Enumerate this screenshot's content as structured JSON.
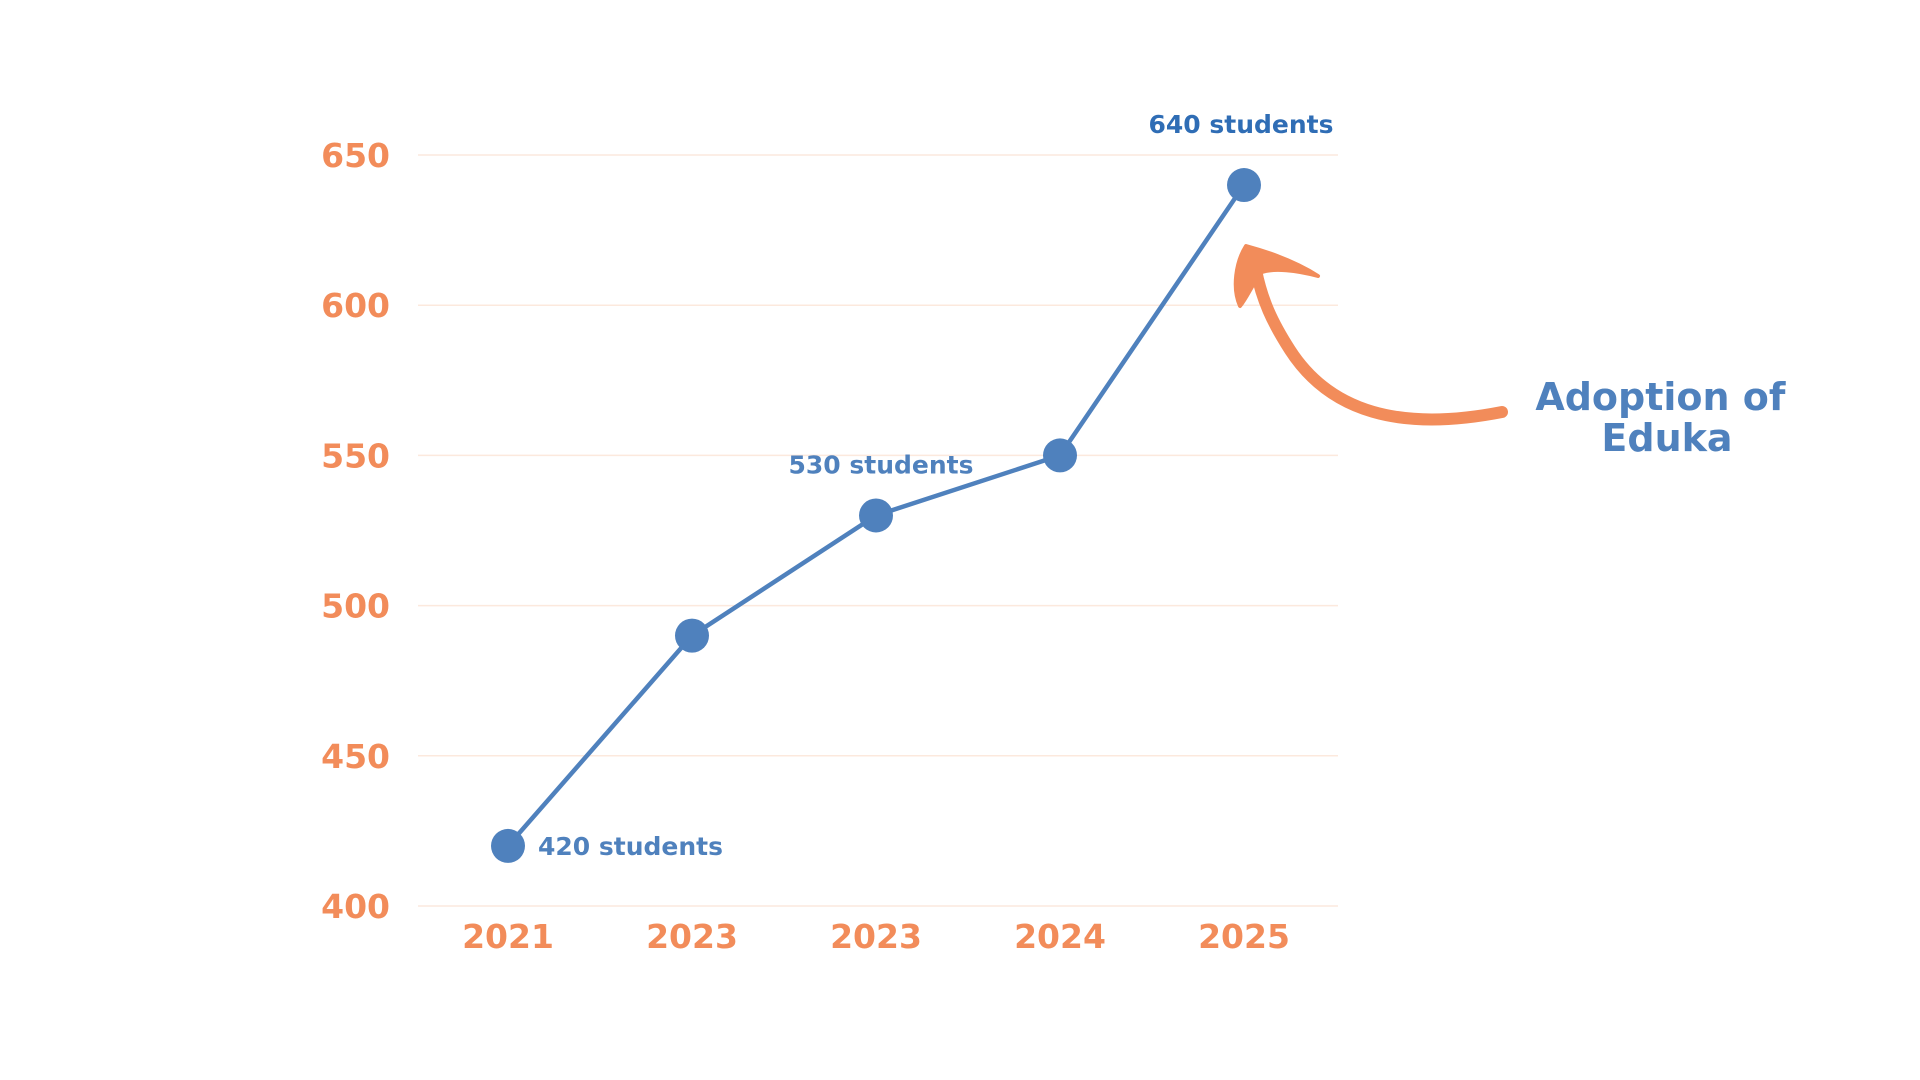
{
  "chart_data": {
    "type": "line",
    "title": "",
    "xlabel": "",
    "ylabel": "",
    "categories": [
      "2021",
      "2023",
      "2023",
      "2024",
      "2025"
    ],
    "series": [
      {
        "values": [
          420,
          490,
          530,
          550,
          640
        ]
      }
    ],
    "ylim": [
      400,
      650
    ],
    "yticks": [
      400,
      450,
      500,
      550,
      600,
      650
    ],
    "grid": true,
    "legend": "none",
    "data_labels": [
      {
        "index": 0,
        "text": "420 students"
      },
      {
        "index": 2,
        "text": "530 students"
      },
      {
        "index": 4,
        "text": "640 students"
      }
    ],
    "annotation": {
      "lines": [
        "Adoption of",
        "Eduka"
      ],
      "points_to_index": 4
    },
    "colors": {
      "line": "#4F81BD",
      "marker": "#4F81BD",
      "tick_labels": "#F28C5A",
      "data_labels": "#4F81BD",
      "top_label": "#2F6DB5",
      "grid": "#FCE9DD",
      "arrow": "#F28C5A",
      "annotation_text": "#4F81BD"
    }
  }
}
